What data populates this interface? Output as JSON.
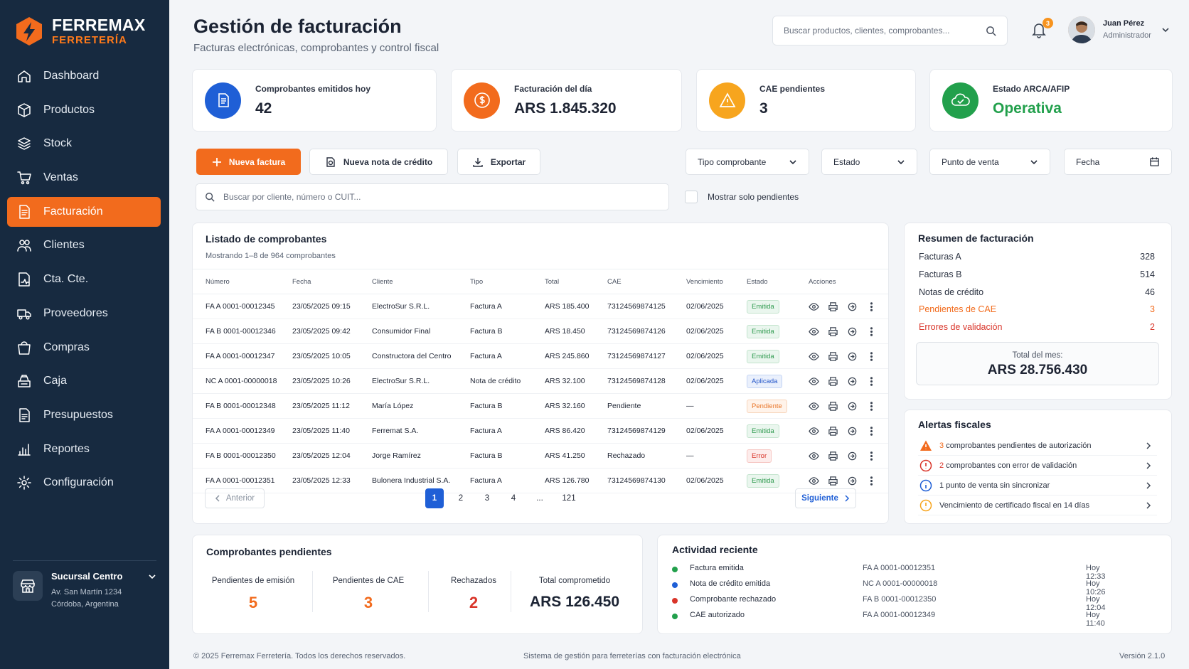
{
  "brand": {
    "name": "FERREMAX",
    "sub": "FERRETERÍA"
  },
  "nav": [
    {
      "label": "Dashboard",
      "icon": "home-icon"
    },
    {
      "label": "Productos",
      "icon": "box-icon"
    },
    {
      "label": "Stock",
      "icon": "layers-icon"
    },
    {
      "label": "Ventas",
      "icon": "cart-icon"
    },
    {
      "label": "Facturación",
      "icon": "invoice-icon",
      "active": true
    },
    {
      "label": "Clientes",
      "icon": "users-icon"
    },
    {
      "label": "Cta. Cte.",
      "icon": "account-icon"
    },
    {
      "label": "Proveedores",
      "icon": "truck-icon"
    },
    {
      "label": "Compras",
      "icon": "bag-icon"
    },
    {
      "label": "Caja",
      "icon": "register-icon"
    },
    {
      "label": "Presupuestos",
      "icon": "document-icon"
    },
    {
      "label": "Reportes",
      "icon": "chart-icon"
    },
    {
      "label": "Configuración",
      "icon": "gear-icon"
    }
  ],
  "branch": {
    "name": "Sucursal Centro",
    "address1": "Av. San Martín 1234",
    "address2": "Córdoba, Argentina"
  },
  "header": {
    "title": "Gestión de facturación",
    "subtitle": "Facturas electrónicas, comprobantes y control fiscal",
    "search_placeholder": "Buscar productos, clientes, comprobantes...",
    "notifications": "3",
    "user_name": "Juan Pérez",
    "user_role": "Administrador"
  },
  "kpis": [
    {
      "label": "Comprobantes emitidos hoy",
      "value": "42",
      "color": "#1f5fd6",
      "icon": "receipt-icon"
    },
    {
      "label": "Facturación del día",
      "value": "ARS 1.845.320",
      "color": "#f26b1d",
      "icon": "dollar-icon"
    },
    {
      "label": "CAE pendientes",
      "value": "3",
      "color": "#f7a51e",
      "icon": "warning-icon"
    },
    {
      "label": "Estado ARCA/AFIP",
      "value": "Operativa",
      "color": "#22a04c",
      "icon": "cloud-check-icon"
    }
  ],
  "toolbar": {
    "new_invoice": "Nueva factura",
    "new_credit_note": "Nueva nota de crédito",
    "export": "Exportar",
    "filter_type": "Tipo comprobante",
    "filter_status": "Estado",
    "filter_pos": "Punto de venta",
    "filter_date": "Fecha",
    "search_placeholder": "Buscar por cliente, número o CUIT...",
    "only_pending": "Mostrar solo pendientes"
  },
  "list": {
    "title": "Listado de comprobantes",
    "showing": "Mostrando 1–8 de 964 comprobantes",
    "columns": [
      "Número",
      "Fecha",
      "Cliente",
      "Tipo",
      "Total",
      "CAE",
      "Vencimiento",
      "Estado",
      "Acciones"
    ],
    "rows": [
      {
        "numero": "FA A 0001-00012345",
        "fecha": "23/05/2025 09:15",
        "cliente": "ElectroSur S.R.L.",
        "tipo": "Factura A",
        "total": "ARS 185.400",
        "cae": "73124569874125",
        "venc": "02/06/2025",
        "estado": "Emitida",
        "kind": "emit"
      },
      {
        "numero": "FA B 0001-00012346",
        "fecha": "23/05/2025 09:42",
        "cliente": "Consumidor Final",
        "tipo": "Factura B",
        "total": "ARS 18.450",
        "cae": "73124569874126",
        "venc": "02/06/2025",
        "estado": "Emitida",
        "kind": "emit"
      },
      {
        "numero": "FA A 0001-00012347",
        "fecha": "23/05/2025 10:05",
        "cliente": "Constructora del Centro",
        "tipo": "Factura A",
        "total": "ARS 245.860",
        "cae": "73124569874127",
        "venc": "02/06/2025",
        "estado": "Emitida",
        "kind": "emit"
      },
      {
        "numero": "NC A 0001-00000018",
        "fecha": "23/05/2025 10:26",
        "cliente": "ElectroSur S.R.L.",
        "tipo": "Nota de crédito",
        "total": "ARS 32.100",
        "cae": "73124569874128",
        "venc": "02/06/2025",
        "estado": "Aplicada",
        "kind": "apl"
      },
      {
        "numero": "FA B 0001-00012348",
        "fecha": "23/05/2025 11:12",
        "cliente": "María López",
        "tipo": "Factura B",
        "total": "ARS 32.160",
        "cae": "Pendiente",
        "venc": "—",
        "estado": "Pendiente",
        "kind": "pen"
      },
      {
        "numero": "FA A 0001-00012349",
        "fecha": "23/05/2025 11:40",
        "cliente": "Ferremat S.A.",
        "tipo": "Factura A",
        "total": "ARS 86.420",
        "cae": "73124569874129",
        "venc": "02/06/2025",
        "estado": "Emitida",
        "kind": "emit"
      },
      {
        "numero": "FA B 0001-00012350",
        "fecha": "23/05/2025 12:04",
        "cliente": "Jorge Ramírez",
        "tipo": "Factura B",
        "total": "ARS 41.250",
        "cae": "Rechazado",
        "venc": "—",
        "estado": "Error",
        "kind": "err"
      },
      {
        "numero": "FA A 0001-00012351",
        "fecha": "23/05/2025 12:33",
        "cliente": "Bulonera Industrial S.A.",
        "tipo": "Factura A",
        "total": "ARS 126.780",
        "cae": "73124569874130",
        "venc": "02/06/2025",
        "estado": "Emitida",
        "kind": "emit"
      }
    ],
    "pager": {
      "prev": "Anterior",
      "next": "Siguiente",
      "pages": [
        "1",
        "2",
        "3",
        "4",
        "...",
        "121"
      ],
      "current": "1"
    }
  },
  "summary": {
    "title": "Resumen de facturación",
    "rows": [
      {
        "label": "Facturas A",
        "value": "328"
      },
      {
        "label": "Facturas B",
        "value": "514"
      },
      {
        "label": "Notas de crédito",
        "value": "46"
      },
      {
        "label": "Pendientes de CAE",
        "value": "3"
      },
      {
        "label": "Errores de validación",
        "value": "2"
      }
    ],
    "total_label": "Total del mes:",
    "total_value": "ARS 28.756.430"
  },
  "alerts": {
    "title": "Alertas fiscales",
    "items": [
      {
        "count": "3",
        "text": "comprobantes pendientes de autorización",
        "icon": "warning-icon"
      },
      {
        "count": "2",
        "text": "comprobantes con error de validación",
        "icon": "error-icon"
      },
      {
        "count": "",
        "text": "1 punto de venta sin sincronizar",
        "icon": "info-icon"
      },
      {
        "count": "",
        "text": "Vencimiento de certificado fiscal en 14 días",
        "icon": "alert-circle-icon"
      }
    ]
  },
  "pending": {
    "title": "Comprobantes pendientes",
    "items": [
      {
        "label": "Pendientes de emisión",
        "value": "5"
      },
      {
        "label": "Pendientes de CAE",
        "value": "3"
      },
      {
        "label": "Rechazados",
        "value": "2"
      },
      {
        "label": "Total comprometido",
        "value": "ARS 126.450"
      }
    ]
  },
  "activity": {
    "title": "Actividad reciente",
    "items": [
      {
        "text": "Factura emitida",
        "number": "FA A 0001-00012351",
        "time": "Hoy 12:33",
        "color": "#22a04c"
      },
      {
        "text": "Nota de crédito emitida",
        "number": "NC A 0001-00000018",
        "time": "Hoy 10:26",
        "color": "#1f5fd6"
      },
      {
        "text": "Comprobante rechazado",
        "number": "FA B 0001-00012350",
        "time": "Hoy 12:04",
        "color": "#d9352a"
      },
      {
        "text": "CAE autorizado",
        "number": "FA A 0001-00012349",
        "time": "Hoy 11:40",
        "color": "#22a04c"
      }
    ]
  },
  "footer": {
    "copyright": "© 2025 Ferremax Ferretería. Todos los derechos reservados.",
    "system": "Sistema de gestión para ferreterías con facturación electrónica",
    "version": "Versión 2.1.0"
  },
  "colors": {
    "accent": "#f26b1d",
    "sidebar": "#172a40",
    "primary_blue": "#1f5fd6",
    "success": "#22a04c",
    "danger": "#d9352a"
  }
}
